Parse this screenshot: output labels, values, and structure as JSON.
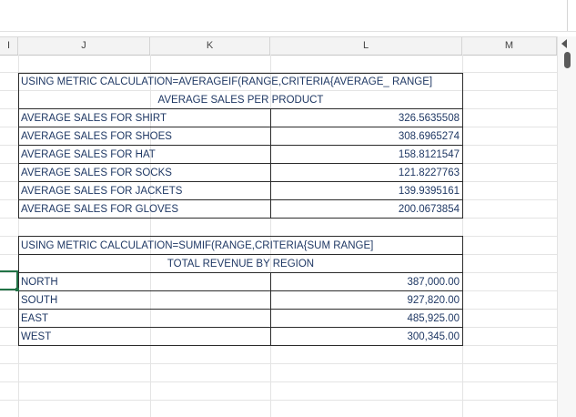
{
  "columns": {
    "i": "I",
    "j": "J",
    "k": "K",
    "l": "L",
    "m": "M"
  },
  "table1": {
    "formula_note": "USING METRIC CALCULATION=AVERAGEIF(RANGE,CRITERIA{AVERAGE_ RANGE]",
    "title": "AVERAGE SALES PER PRODUCT",
    "rows": [
      {
        "label": "AVERAGE SALES FOR SHIRT",
        "value": "326.5635508"
      },
      {
        "label": "AVERAGE SALES FOR SHOES",
        "value": "308.6965274"
      },
      {
        "label": "AVERAGE SALES FOR HAT",
        "value": "158.8121547"
      },
      {
        "label": "AVERAGE SALES FOR SOCKS",
        "value": "121.8227763"
      },
      {
        "label": "AVERAGE SALES FOR JACKETS",
        "value": "139.9395161"
      },
      {
        "label": "AVERAGE SALES FOR GLOVES",
        "value": "200.0673854"
      }
    ]
  },
  "table2": {
    "formula_note": "USING METRIC CALCULATION=SUMIF(RANGE,CRITERIA{SUM RANGE]",
    "title": "TOTAL REVENUE BY REGION",
    "rows": [
      {
        "label": "NORTH",
        "value": "387,000.00"
      },
      {
        "label": "SOUTH",
        "value": "927,820.00"
      },
      {
        "label": "EAST",
        "value": "485,925.00"
      },
      {
        "label": "WEST",
        "value": "300,345.00"
      }
    ]
  },
  "colors": {
    "cell_text": "#1f3864",
    "selection": "#217346"
  }
}
